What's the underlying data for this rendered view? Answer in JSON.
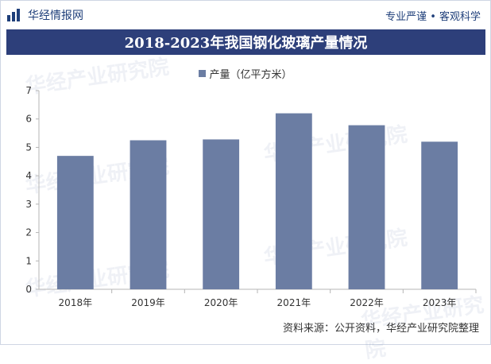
{
  "header": {
    "brand_name": "华经情报网",
    "slogan": "专业严谨 • 客观科学"
  },
  "colors": {
    "title_bg": "#2d3f7a",
    "bar": "#6b7da3",
    "brand": "#1f3f7a"
  },
  "watermark_text": "华经产业研究院",
  "chart_data": {
    "type": "bar",
    "title": "2018-2023年我国钢化玻璃产量情况",
    "categories": [
      "2018年",
      "2019年",
      "2020年",
      "2021年",
      "2022年",
      "2023年"
    ],
    "series": [
      {
        "name": "产量（亿平方米）",
        "values": [
          4.7,
          5.25,
          5.28,
          6.2,
          5.78,
          5.2
        ]
      }
    ],
    "yticks": [
      0,
      1,
      2,
      3,
      4,
      5,
      6,
      7
    ],
    "ylim": [
      0,
      7
    ],
    "grid": false,
    "legend": "top-center"
  },
  "source": "资料来源：公开资料，华经产业研究院整理"
}
